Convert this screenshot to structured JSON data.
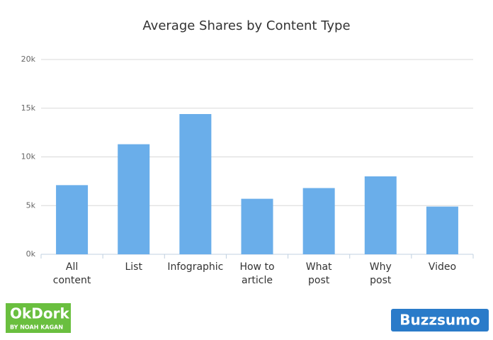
{
  "chart_data": {
    "type": "bar",
    "title": "Average Shares by Content Type",
    "categories": [
      [
        "All",
        "content"
      ],
      [
        "List"
      ],
      [
        "Infographic"
      ],
      [
        "How to",
        "article"
      ],
      [
        "What",
        "post"
      ],
      [
        "Why",
        "post"
      ],
      [
        "Video"
      ]
    ],
    "values": [
      7100,
      11300,
      14400,
      5700,
      6800,
      8000,
      4900
    ],
    "color": "#6aaeea",
    "ylim": [
      0,
      20000
    ],
    "yticks": [
      {
        "value": 0,
        "label": "0k"
      },
      {
        "value": 5000,
        "label": "5k"
      },
      {
        "value": 10000,
        "label": "10k"
      },
      {
        "value": 15000,
        "label": "15k"
      },
      {
        "value": 20000,
        "label": "20k"
      }
    ],
    "grid": true
  },
  "logos": {
    "left": {
      "name": "OkDork",
      "tagline": "BY NOAH KAGAN"
    },
    "right": "Buzzsumo"
  }
}
